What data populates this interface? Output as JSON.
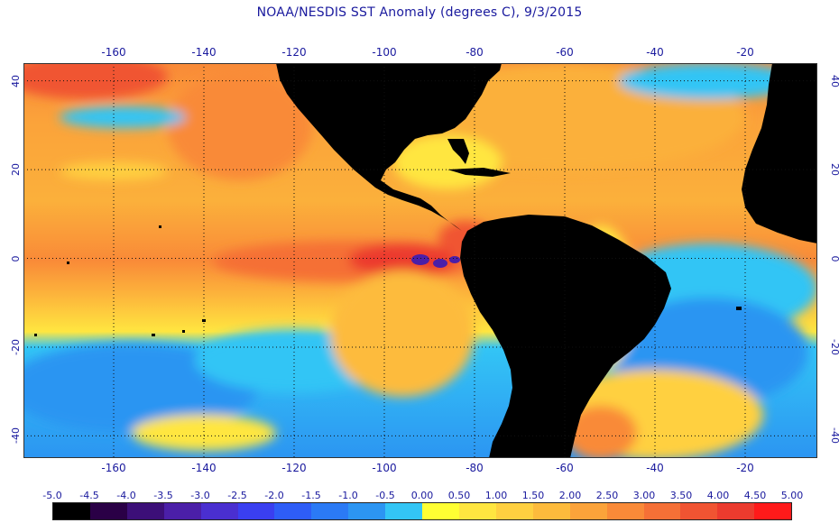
{
  "title": "NOAA/NESDIS SST Anomaly (degrees C), 9/3/2015",
  "map": {
    "lon_min": -180,
    "lon_max": -4,
    "lat_min": -45,
    "lat_max": 44,
    "lon_ticks": [
      "-160",
      "-140",
      "-120",
      "-100",
      "-80",
      "-60",
      "-40",
      "-20"
    ],
    "lon_tick_values": [
      -160,
      -140,
      -120,
      -100,
      -80,
      -60,
      -40,
      -20
    ],
    "lat_ticks": [
      "40",
      "20",
      "0",
      "-20",
      "-40"
    ],
    "lat_tick_values": [
      40,
      20,
      0,
      -20,
      -40
    ],
    "gridlines": "dotted"
  },
  "colorbar": {
    "labels": [
      "-5.0",
      "-4.5",
      "-4.0",
      "-3.5",
      "-3.0",
      "-2.5",
      "-2.0",
      "-1.5",
      "-1.0",
      "-0.5",
      "0.00",
      "0.50",
      "1.00",
      "1.50",
      "2.00",
      "2.50",
      "3.00",
      "3.50",
      "4.00",
      "4.50",
      "5.00"
    ],
    "colors": [
      "#000000",
      "#2a0046",
      "#3c0f78",
      "#4b1fa8",
      "#4a2fd0",
      "#3a3ff0",
      "#2e5df7",
      "#2b7af5",
      "#2c95f2",
      "#33c5f5",
      "#ffff33",
      "#ffe640",
      "#ffd040",
      "#fdbb3c",
      "#fba33a",
      "#f98a38",
      "#f57036",
      "#f05432",
      "#ec3b2e",
      "#ff1a1a"
    ]
  },
  "colors": {
    "land": "#000000",
    "text": "#1a1a9e"
  }
}
